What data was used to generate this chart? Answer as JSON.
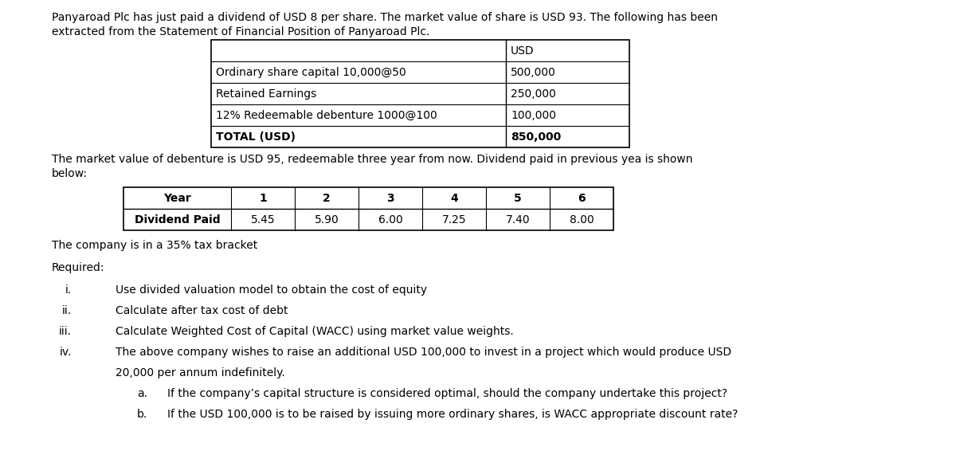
{
  "bg_color": "#ffffff",
  "intro_line1": "Panyaroad Plc has just paid a dividend of USD 8 per share. The market value of share is USD 93. The following has been",
  "intro_line2": "extracted from the Statement of Financial Position of Panyaroad Plc.",
  "table1_rows": [
    [
      "",
      "USD"
    ],
    [
      "Ordinary share capital 10,000@50",
      "500,000"
    ],
    [
      "Retained Earnings",
      "250,000"
    ],
    [
      "12% Redeemable debenture 1000@100",
      "100,000"
    ],
    [
      "TOTAL (USD)",
      "850,000"
    ]
  ],
  "mid_line1": "The market value of debenture is USD 95, redeemable three year from now. Dividend paid in previous yea is shown",
  "mid_line2": "below:",
  "table2_headers": [
    "Year",
    "1",
    "2",
    "3",
    "4",
    "5",
    "6"
  ],
  "table2_row": [
    "Dividend Paid",
    "5.45",
    "5.90",
    "6.00",
    "7.25",
    "7.40",
    "8.00"
  ],
  "tax_text": "The company is in a 35% tax bracket",
  "required_text": "Required:",
  "item_i": "Use divided valuation model to obtain the cost of equity",
  "item_ii": "Calculate after tax cost of debt",
  "item_iii": "Calculate Weighted Cost of Capital (WACC) using market value weights.",
  "item_iv_1": "The above company wishes to raise an additional USD 100,000 to invest in a project which would produce USD",
  "item_iv_2": "20,000 per annum indefinitely.",
  "item_a": "If the company’s capital structure is considered optimal, should the company undertake this project?",
  "item_b": "If the USD 100,000 is to be raised by issuing more ordinary shares, is WACC appropriate discount rate?",
  "font_size": 10.0,
  "font_family": "DejaVu Sans"
}
